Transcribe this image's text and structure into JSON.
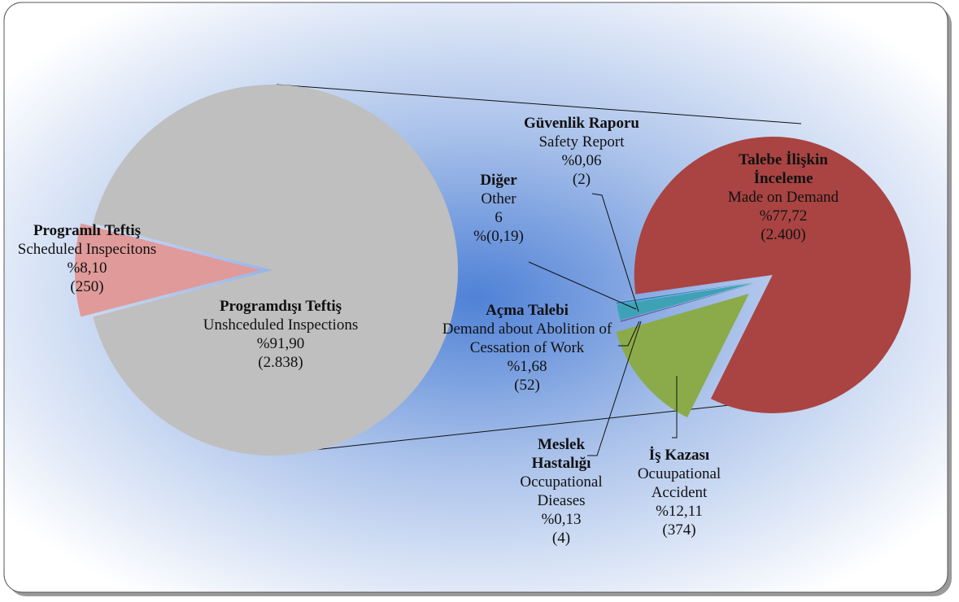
{
  "chart_data": [
    {
      "type": "pie",
      "categories": [
        "Programlı Teftiş",
        "Programdışı Teftiş"
      ],
      "descriptions": [
        "Scheduled Inspecitons",
        "Unshceduled Inspections"
      ],
      "values": [
        8.1,
        91.9
      ],
      "value_labels": [
        "%8,10",
        "%91,90"
      ],
      "counts": [
        250,
        2838
      ],
      "count_labels": [
        "(250)",
        "(2.838)"
      ],
      "colors": [
        "#e09a9a",
        "#bfbfbf"
      ]
    },
    {
      "type": "pie",
      "categories": [
        "Talebe İlişkin İnceleme",
        "İş Kazası",
        "Meslek Hastalığı",
        "Açma Talebi",
        "Diğer",
        "Güvenlik Raporu"
      ],
      "descriptions": [
        "Made on Demand",
        "Ocuupational Accident",
        "Occupational Dieases",
        "Demand  about Abolition of Cessation of Work",
        "Other",
        "Safety Report"
      ],
      "values": [
        77.72,
        12.11,
        0.13,
        1.68,
        0.19,
        0.06
      ],
      "value_labels": [
        "%77,72",
        "%12,11",
        "%0,13",
        "%1,68",
        "%(0,19)",
        "%0,06"
      ],
      "counts": [
        2400,
        374,
        4,
        52,
        6,
        2
      ],
      "count_labels": [
        "(2.400)",
        "(374)",
        "(4)",
        "(52)",
        "6",
        "(2)"
      ],
      "colors": [
        "#a94442",
        "#8bab4b",
        "#6a5a9c",
        "#3ea2b6",
        "#2e7fb8",
        "#9dc3e6"
      ]
    }
  ]
}
